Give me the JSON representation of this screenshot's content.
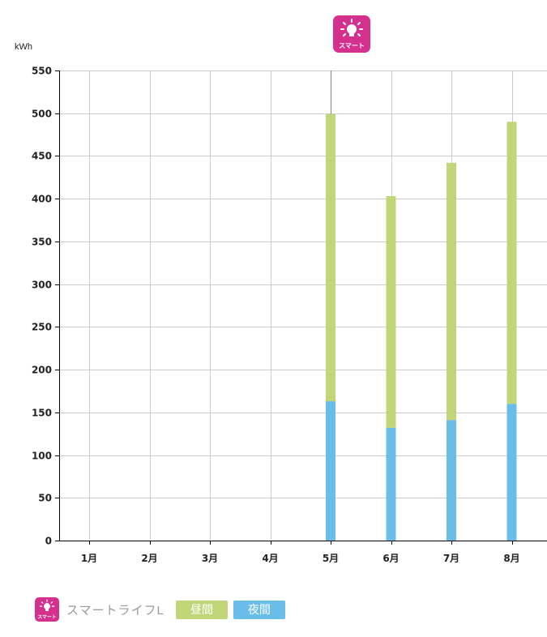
{
  "header": {
    "plan_icon": "smart-light-bulb-icon",
    "plan_icon_text": "スマート"
  },
  "axis": {
    "unit": "kWh"
  },
  "legend": {
    "plan_icon": "smart-light-bulb-icon",
    "plan_icon_text": "スマート",
    "plan_name": "スマートライフL",
    "day_label": "昼間",
    "night_label": "夜間"
  },
  "colors": {
    "day": "#c1d579",
    "night": "#69bde6",
    "brand": "#d6308f",
    "grid": "#cccccc",
    "axis": "#000000"
  },
  "chart_data": {
    "type": "bar",
    "stacked": true,
    "ylabel": "kWh",
    "ylim": [
      0,
      550
    ],
    "yticks": [
      0,
      50,
      100,
      150,
      200,
      250,
      300,
      350,
      400,
      450,
      500,
      550
    ],
    "grid": true,
    "categories": [
      "1月",
      "2月",
      "3月",
      "4月",
      "5月",
      "6月",
      "7月",
      "8月"
    ],
    "series": [
      {
        "name": "夜間",
        "color": "#69bde6",
        "values": [
          0,
          0,
          0,
          0,
          163,
          132,
          141,
          160
        ]
      },
      {
        "name": "昼間",
        "color": "#c1d579",
        "values": [
          0,
          0,
          0,
          0,
          336,
          271,
          301,
          330
        ]
      }
    ]
  }
}
